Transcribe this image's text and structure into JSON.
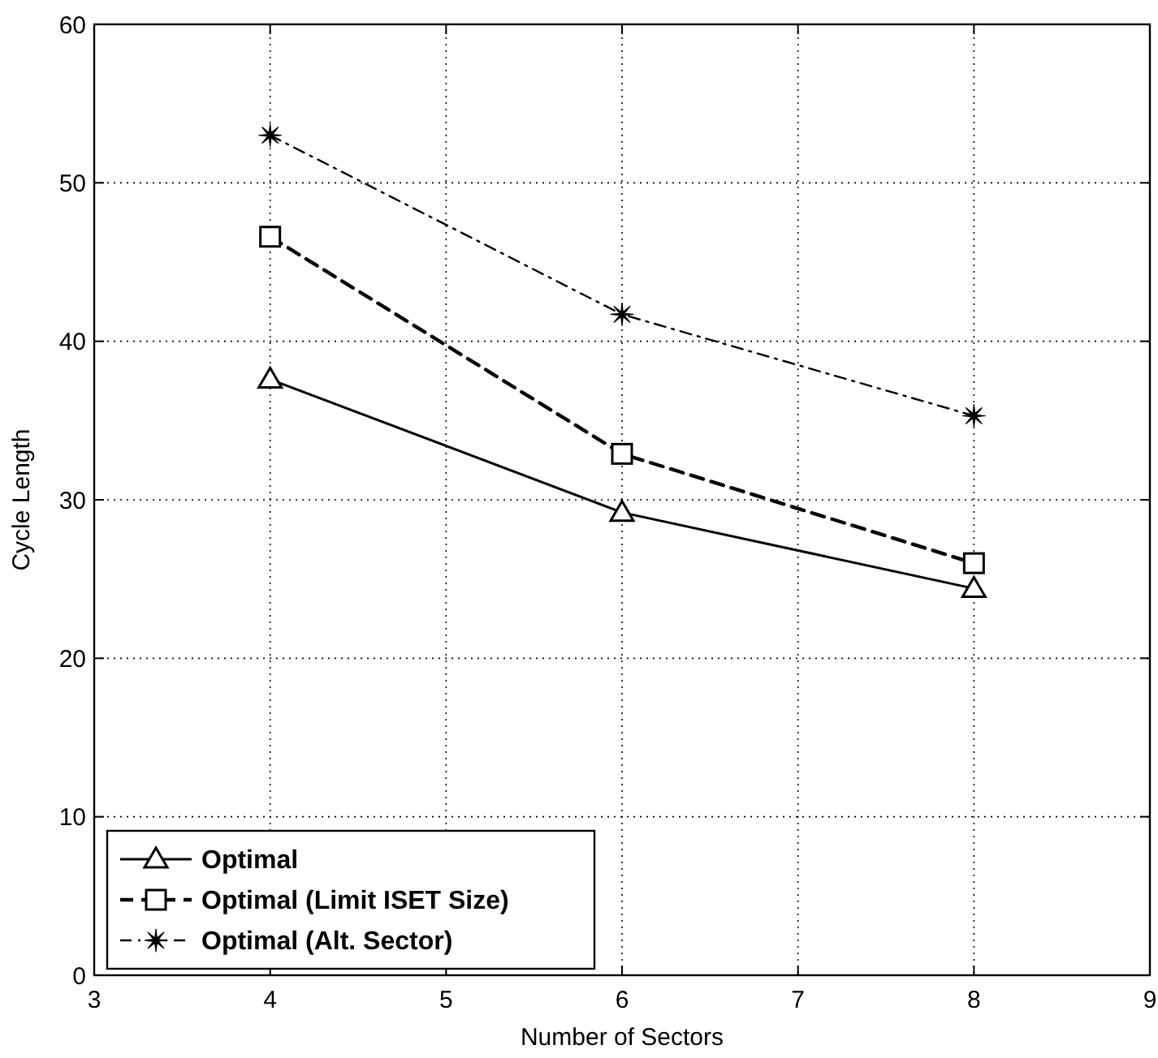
{
  "chart_data": {
    "type": "line",
    "xlabel": "Number of Sectors",
    "ylabel": "Cycle Length",
    "x": [
      4,
      6,
      8
    ],
    "series": [
      {
        "name": "Optimal",
        "color": "#000000",
        "values": [
          37.6,
          29.2,
          24.4
        ],
        "marker": "triangle",
        "line_style": "solid"
      },
      {
        "name": "Optimal (Limit ISET Size)",
        "color": "#000000",
        "values": [
          46.6,
          32.9,
          26.0
        ],
        "marker": "square",
        "line_style": "dashed"
      },
      {
        "name": "Optimal (Alt. Sector)",
        "color": "#000000",
        "values": [
          53.0,
          41.7,
          35.3
        ],
        "marker": "star",
        "line_style": "dotted"
      }
    ],
    "xlim": [
      3,
      9
    ],
    "xticks": [
      3,
      4,
      5,
      6,
      7,
      8,
      9
    ],
    "ylim": [
      0,
      60
    ],
    "yticks": [
      0,
      10,
      20,
      30,
      40,
      50,
      60
    ],
    "grid": true,
    "legend": "bottom left"
  }
}
